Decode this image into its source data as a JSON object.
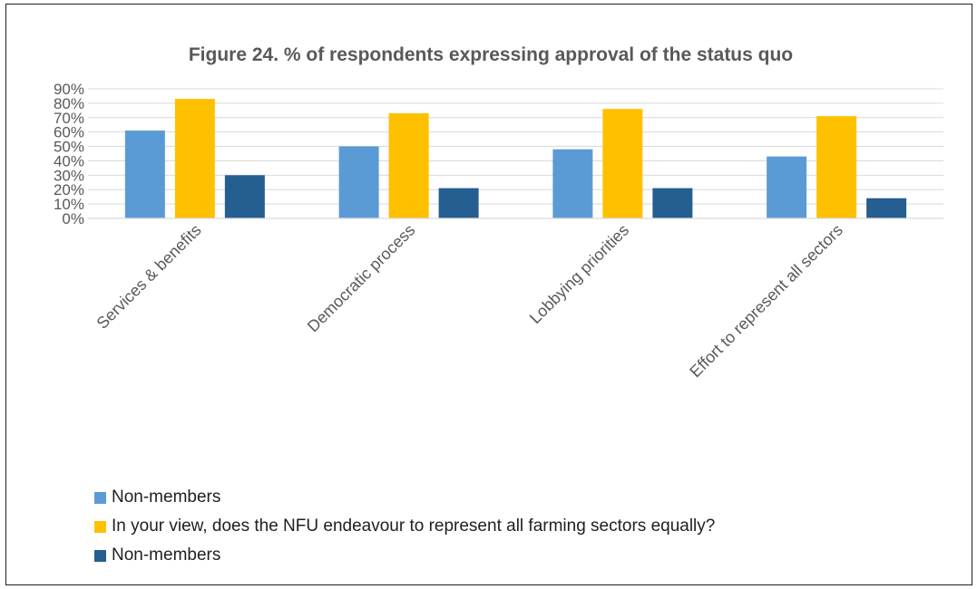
{
  "chart_data": {
    "type": "bar",
    "title": "Figure 24. % of respondents expressing approval of the status quo",
    "categories": [
      "Services & benefits",
      "Democratic process",
      "Lobbying priorities",
      "Effort to represent all sectors"
    ],
    "series": [
      {
        "name": "Non-members",
        "color": "#5B9BD5",
        "values": [
          61,
          50,
          48,
          43
        ]
      },
      {
        "name": "In your view, does the NFU endeavour to represent all farming sectors equally?",
        "color": "#FFC000",
        "values": [
          83,
          73,
          76,
          71
        ]
      },
      {
        "name": "Non-members",
        "color": "#255E91",
        "values": [
          30,
          21,
          21,
          14
        ]
      }
    ],
    "ylim": [
      0,
      90
    ],
    "yticks": [
      "0%",
      "10%",
      "20%",
      "30%",
      "40%",
      "50%",
      "60%",
      "70%",
      "80%",
      "90%"
    ],
    "grid": true,
    "legend_position": "bottom-left",
    "xlabel": "",
    "ylabel": ""
  }
}
